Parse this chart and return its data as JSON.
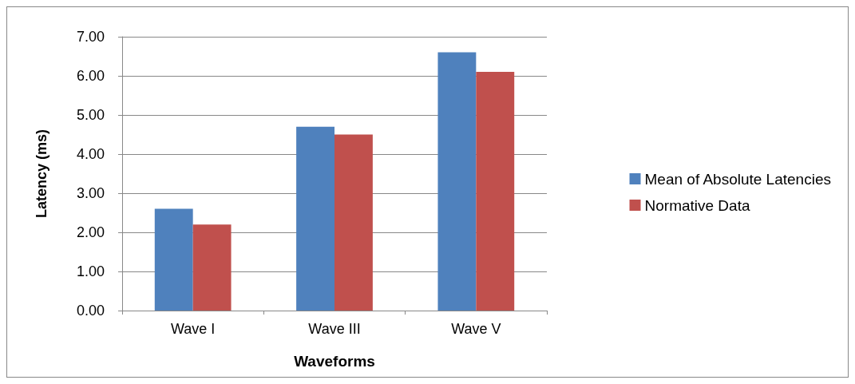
{
  "chart_data": {
    "type": "bar",
    "xlabel": "Waveforms",
    "ylabel": "Latency (ms)",
    "categories": [
      "Wave I",
      "Wave III",
      "Wave V"
    ],
    "series": [
      {
        "name": "Mean of Absolute Latencies",
        "color": "#4f81bd",
        "values": [
          2.6,
          4.7,
          6.6
        ]
      },
      {
        "name": "Normative Data",
        "color": "#c0504d",
        "values": [
          2.2,
          4.5,
          6.1
        ]
      }
    ],
    "ylim": [
      0,
      7
    ],
    "yticks": [
      {
        "value": 0,
        "label": "0.00"
      },
      {
        "value": 1,
        "label": "1.00"
      },
      {
        "value": 2,
        "label": "2.00"
      },
      {
        "value": 3,
        "label": "3.00"
      },
      {
        "value": 4,
        "label": "4.00"
      },
      {
        "value": 5,
        "label": "5.00"
      },
      {
        "value": 6,
        "label": "6.00"
      },
      {
        "value": 7,
        "label": "7.00"
      }
    ],
    "grid": "y",
    "legend": "right"
  }
}
